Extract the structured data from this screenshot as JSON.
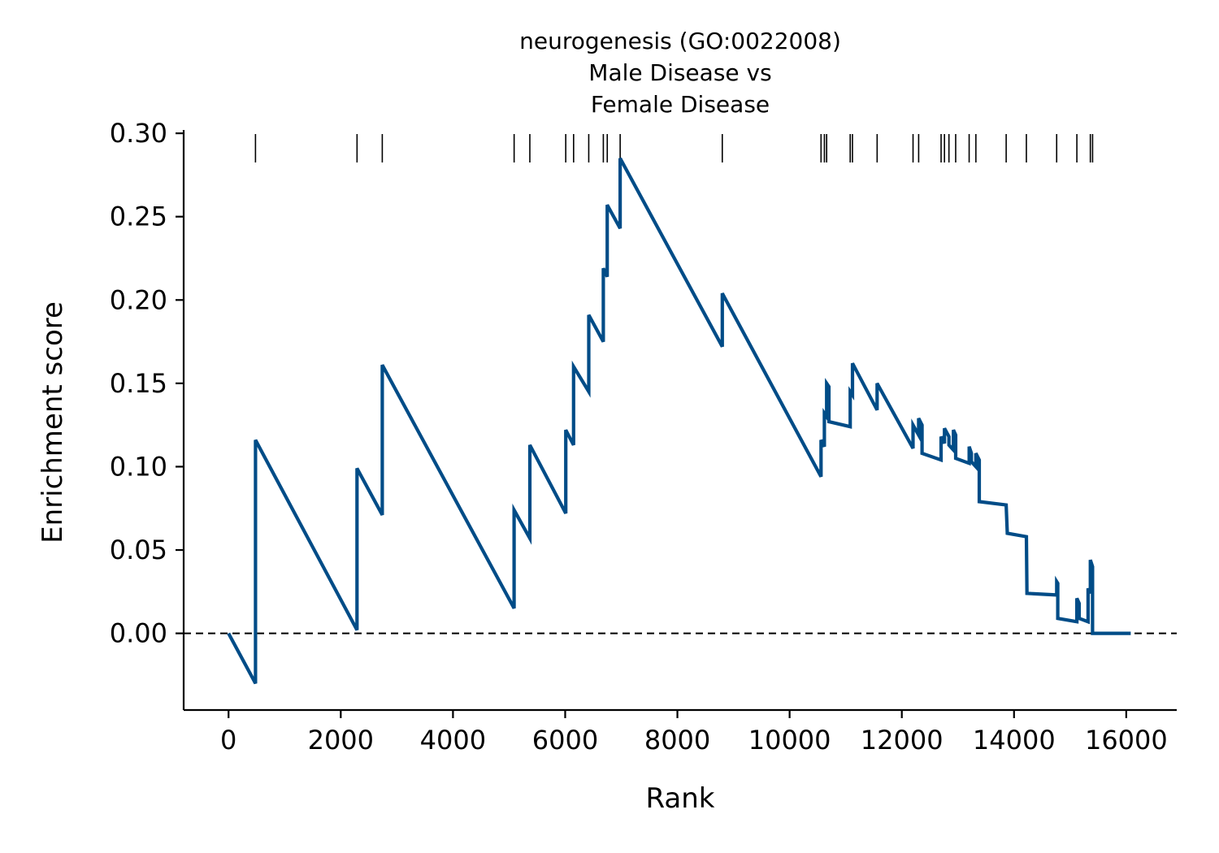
{
  "chart_data": {
    "type": "line",
    "title": [
      "neurogenesis (GO:0022008)",
      "Male Disease vs",
      "Female Disease"
    ],
    "xlabel": "Rank",
    "ylabel": "Enrichment score",
    "xlim": [
      -800,
      16900
    ],
    "ylim": [
      -0.046,
      0.302
    ],
    "xticks": [
      0,
      2000,
      4000,
      6000,
      8000,
      10000,
      12000,
      14000,
      16000
    ],
    "xtick_labels": [
      "0",
      "2000",
      "4000",
      "6000",
      "8000",
      "10000",
      "12000",
      "14000",
      "16000"
    ],
    "yticks": [
      0.0,
      0.05,
      0.1,
      0.15,
      0.2,
      0.25,
      0.3
    ],
    "ytick_labels": [
      "0.00",
      "0.05",
      "0.10",
      "0.15",
      "0.20",
      "0.25",
      "0.30"
    ],
    "grid": false,
    "baseline_y": 0,
    "line_color": "#004c87",
    "series": [
      {
        "x": [
          0,
          480,
          480,
          2290,
          2290,
          2740,
          2740,
          5090,
          5090,
          5370,
          5370,
          6010,
          6010,
          6150,
          6150,
          6420,
          6420,
          6680,
          6680,
          6750,
          6750,
          6980,
          6980,
          8800,
          8800,
          10560,
          10560,
          10620,
          10620,
          10660,
          10660,
          10700,
          10700,
          11080,
          11080,
          11120,
          11120,
          11560,
          11560,
          12200,
          12200,
          12300,
          12300,
          12360,
          12360,
          12700,
          12700,
          12760,
          12760,
          12840,
          12840,
          12920,
          12920,
          12960,
          12960,
          13200,
          13200,
          13240,
          13240,
          13320,
          13320,
          13380,
          13380,
          13860,
          13880,
          14220,
          14230,
          14760,
          14760,
          14780,
          14780,
          15120,
          15120,
          15160,
          15160,
          15320,
          15320,
          15360,
          15360,
          15400,
          15400,
          16080
        ],
        "y": [
          0.0,
          -0.03,
          0.116,
          0.002,
          0.099,
          0.071,
          0.161,
          0.015,
          0.074,
          0.057,
          0.113,
          0.072,
          0.122,
          0.113,
          0.16,
          0.145,
          0.191,
          0.175,
          0.219,
          0.214,
          0.257,
          0.243,
          0.285,
          0.172,
          0.204,
          0.094,
          0.116,
          0.112,
          0.132,
          0.13,
          0.15,
          0.148,
          0.127,
          0.124,
          0.145,
          0.143,
          0.162,
          0.134,
          0.15,
          0.111,
          0.125,
          0.119,
          0.129,
          0.125,
          0.108,
          0.104,
          0.118,
          0.114,
          0.123,
          0.118,
          0.113,
          0.11,
          0.122,
          0.119,
          0.105,
          0.102,
          0.112,
          0.108,
          0.103,
          0.1,
          0.108,
          0.104,
          0.079,
          0.077,
          0.06,
          0.058,
          0.024,
          0.023,
          0.031,
          0.03,
          0.009,
          0.007,
          0.021,
          0.018,
          0.009,
          0.007,
          0.027,
          0.024,
          0.044,
          0.04,
          0.0,
          0.0
        ]
      }
    ],
    "hits": [
      480,
      2290,
      2740,
      5090,
      5370,
      6010,
      6150,
      6420,
      6680,
      6750,
      6980,
      8800,
      10560,
      10620,
      10660,
      11080,
      11120,
      11560,
      12200,
      12300,
      12700,
      12760,
      12840,
      12960,
      13200,
      13320,
      13860,
      14220,
      14760,
      15120,
      15360,
      15400
    ]
  }
}
